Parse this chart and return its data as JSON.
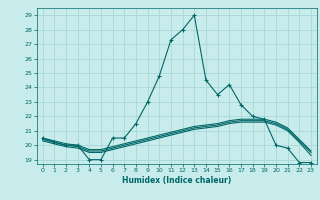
{
  "xlabel": "Humidex (Indice chaleur)",
  "ylabel": "",
  "background_color": "#c8ecec",
  "line_color": "#006666",
  "grid_color": "#a8d8d8",
  "xlim": [
    -0.5,
    23.5
  ],
  "ylim": [
    18.7,
    29.5
  ],
  "yticks": [
    19,
    20,
    21,
    22,
    23,
    24,
    25,
    26,
    27,
    28,
    29
  ],
  "xticks": [
    0,
    1,
    2,
    3,
    4,
    5,
    6,
    7,
    8,
    9,
    10,
    11,
    12,
    13,
    14,
    15,
    16,
    17,
    18,
    19,
    20,
    21,
    22,
    23
  ],
  "lines": [
    {
      "x": [
        0,
        1,
        2,
        3,
        4,
        5,
        6,
        7,
        8,
        9,
        10,
        11,
        12,
        13,
        14,
        15,
        16,
        17,
        18,
        19,
        20,
        21,
        22,
        23
      ],
      "y": [
        20.5,
        20.2,
        20.0,
        20.0,
        19.0,
        19.0,
        20.5,
        20.5,
        21.5,
        23.0,
        24.8,
        27.3,
        28.0,
        29.0,
        24.5,
        23.5,
        24.2,
        22.8,
        22.0,
        21.8,
        20.0,
        19.8,
        18.8,
        18.8
      ],
      "marker": "+"
    },
    {
      "x": [
        0,
        1,
        2,
        3,
        4,
        5,
        6,
        7,
        8,
        9,
        10,
        11,
        12,
        13,
        14,
        15,
        16,
        17,
        18,
        19,
        20,
        21,
        22,
        23
      ],
      "y": [
        20.3,
        20.1,
        19.9,
        19.8,
        19.5,
        19.5,
        19.7,
        19.9,
        20.1,
        20.3,
        20.5,
        20.7,
        20.9,
        21.1,
        21.2,
        21.3,
        21.5,
        21.6,
        21.6,
        21.6,
        21.4,
        21.0,
        20.2,
        19.3
      ],
      "marker": null
    },
    {
      "x": [
        0,
        1,
        2,
        3,
        4,
        5,
        6,
        7,
        8,
        9,
        10,
        11,
        12,
        13,
        14,
        15,
        16,
        17,
        18,
        19,
        20,
        21,
        22,
        23
      ],
      "y": [
        20.4,
        20.2,
        20.0,
        19.9,
        19.6,
        19.6,
        19.8,
        20.0,
        20.2,
        20.4,
        20.6,
        20.8,
        21.0,
        21.2,
        21.3,
        21.4,
        21.6,
        21.7,
        21.7,
        21.7,
        21.5,
        21.1,
        20.3,
        19.5
      ],
      "marker": null
    },
    {
      "x": [
        0,
        1,
        2,
        3,
        4,
        5,
        6,
        7,
        8,
        9,
        10,
        11,
        12,
        13,
        14,
        15,
        16,
        17,
        18,
        19,
        20,
        21,
        22,
        23
      ],
      "y": [
        20.5,
        20.3,
        20.1,
        20.0,
        19.7,
        19.7,
        19.9,
        20.1,
        20.3,
        20.5,
        20.7,
        20.9,
        21.1,
        21.3,
        21.4,
        21.5,
        21.7,
        21.8,
        21.8,
        21.8,
        21.6,
        21.2,
        20.4,
        19.6
      ],
      "marker": null
    }
  ]
}
